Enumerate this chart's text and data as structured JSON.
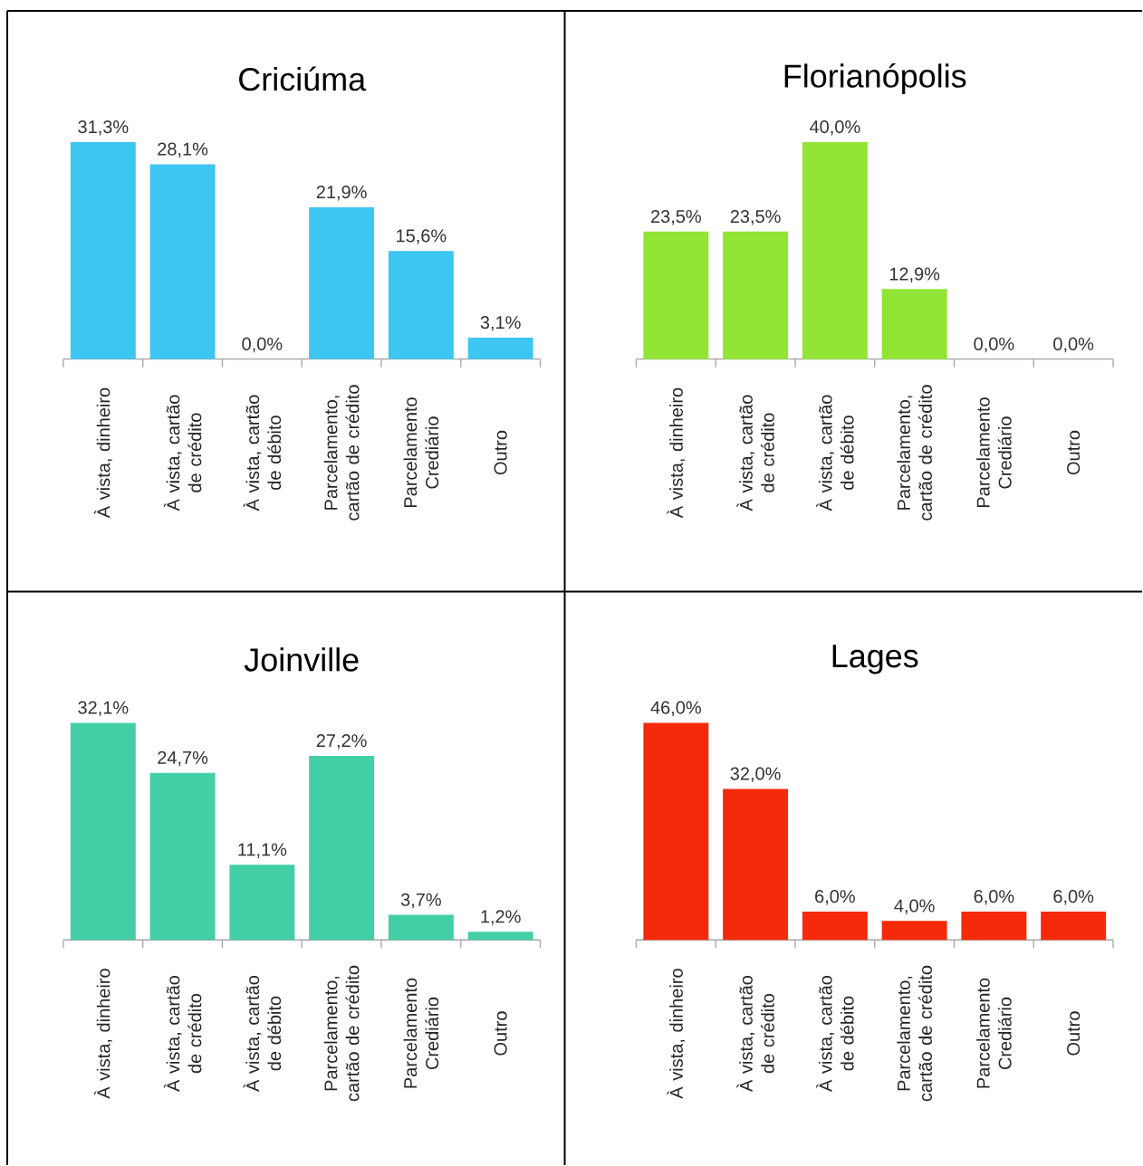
{
  "chart_data": [
    {
      "type": "bar",
      "title": "Criciúma",
      "categories": [
        "À vista, dinheiro",
        "À vista, cartão de crédito",
        "À vista, cartão de débito",
        "Parcelamento, cartão de crédito",
        "Parcelamento Crediário",
        "Outro"
      ],
      "values": [
        31.3,
        28.1,
        0.0,
        21.9,
        15.6,
        3.1
      ],
      "value_labels": [
        "31,3%",
        "28,1%",
        "0,0%",
        "21,9%",
        "15,6%",
        "3,1%"
      ],
      "color": "#3ec6f2"
    },
    {
      "type": "bar",
      "title": "Florianópolis",
      "categories": [
        "À vista, dinheiro",
        "À vista, cartão de crédito",
        "À vista, cartão de débito",
        "Parcelamento, cartão de crédito",
        "Parcelamento Crediário",
        "Outro"
      ],
      "values": [
        23.5,
        23.5,
        40.0,
        12.9,
        0.0,
        0.0
      ],
      "value_labels": [
        "23,5%",
        "23,5%",
        "40,0%",
        "12,9%",
        "0,0%",
        "0,0%"
      ],
      "color": "#92e434"
    },
    {
      "type": "bar",
      "title": "Joinville",
      "categories": [
        "À vista, dinheiro",
        "À vista, cartão de crédito",
        "À vista, cartão de débito",
        "Parcelamento, cartão de crédito",
        "Parcelamento Crediário",
        "Outro"
      ],
      "values": [
        32.1,
        24.7,
        11.1,
        27.2,
        3.7,
        1.2
      ],
      "value_labels": [
        "32,1%",
        "24,7%",
        "11,1%",
        "27,2%",
        "3,7%",
        "1,2%"
      ],
      "color": "#42cfa6"
    },
    {
      "type": "bar",
      "title": "Lages",
      "categories": [
        "À vista, dinheiro",
        "À vista, cartão de crédito",
        "À vista, cartão de débito",
        "Parcelamento, cartão de crédito",
        "Parcelamento Crediário",
        "Outro"
      ],
      "values": [
        46.0,
        32.0,
        6.0,
        4.0,
        6.0,
        6.0
      ],
      "value_labels": [
        "46,0%",
        "32,0%",
        "6,0%",
        "4,0%",
        "6,0%",
        "6,0%"
      ],
      "color": "#f52a0a"
    }
  ]
}
